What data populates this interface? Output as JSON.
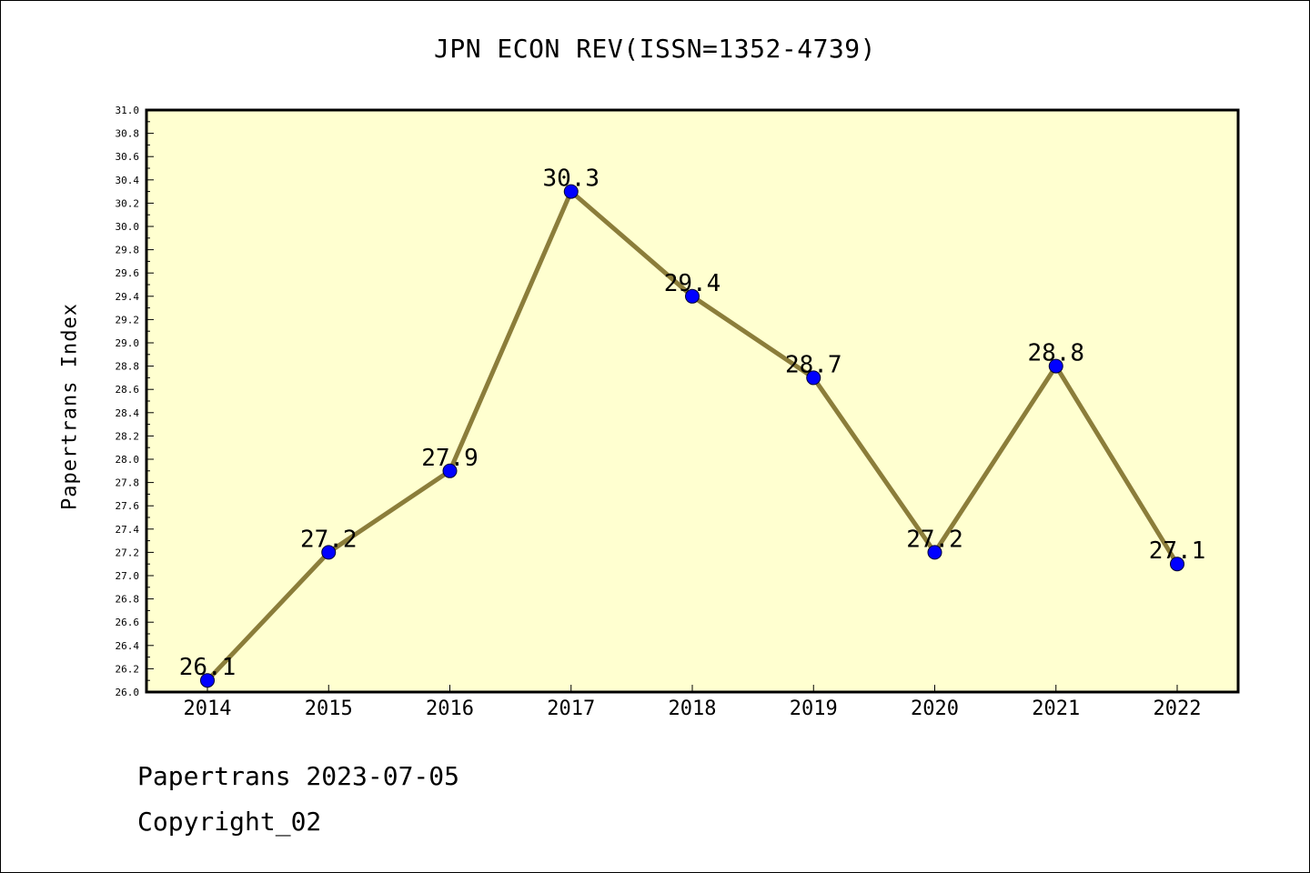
{
  "chart_data": {
    "type": "line",
    "title": "JPN ECON REV(ISSN=1352-4739)",
    "xlabel": "",
    "ylabel": "Papertrans Index",
    "categories": [
      "2014",
      "2015",
      "2016",
      "2017",
      "2018",
      "2019",
      "2020",
      "2021",
      "2022"
    ],
    "series": [
      {
        "values": [
          26.1,
          27.2,
          27.9,
          30.3,
          29.4,
          28.7,
          27.2,
          28.8,
          27.1
        ],
        "labels": [
          "26.1",
          "27.2",
          "27.9",
          "30.3",
          "29.4",
          "28.7",
          "27.2",
          "28.8",
          "27.1"
        ]
      }
    ],
    "ylim": [
      26.0,
      31.0
    ],
    "yticks": [
      "26.0",
      "26.2",
      "26.4",
      "26.6",
      "26.8",
      "27.0",
      "27.2",
      "27.4",
      "27.6",
      "27.8",
      "28.0",
      "28.2",
      "28.4",
      "28.6",
      "28.8",
      "29.0",
      "29.2",
      "29.4",
      "29.6",
      "29.8",
      "30.0",
      "30.2",
      "30.4",
      "30.6",
      "30.8",
      "31.0"
    ],
    "grid": false,
    "legend": "none",
    "colors": {
      "line": "#8B7D3A",
      "marker": "#0000FF",
      "plot_background": "#FFFFD0",
      "frame": "#000000"
    }
  },
  "footer": {
    "date_line": "Papertrans 2023-07-05",
    "copyright": "Copyright_02"
  }
}
